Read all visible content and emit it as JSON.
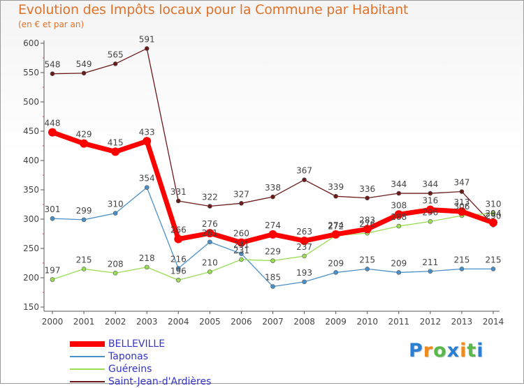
{
  "chart_data": {
    "type": "line",
    "title": "Evolution des Impôts locaux pour la Commune par Habitant",
    "subtitle": "(en € et par an)",
    "x": [
      "2000",
      "2001",
      "2002",
      "2003",
      "2004",
      "2005",
      "2006",
      "2007",
      "2008",
      "2009",
      "2010",
      "2011",
      "2012",
      "2013",
      "2014"
    ],
    "ylim": [
      150,
      600
    ],
    "yticks": [
      150,
      200,
      250,
      300,
      350,
      400,
      450,
      500,
      550,
      600
    ],
    "grid": false,
    "legend_position": "bottom-left",
    "series": [
      {
        "name": "BELLEVILLE",
        "color": "#ff0000",
        "values": [
          448,
          429,
          415,
          433,
          266,
          276,
          260,
          274,
          263,
          274,
          283,
          308,
          316,
          313,
          294
        ]
      },
      {
        "name": "Taponas",
        "color": "#4a90c8",
        "values": [
          301,
          299,
          310,
          354,
          216,
          261,
          241,
          185,
          193,
          209,
          215,
          209,
          211,
          215,
          215
        ]
      },
      {
        "name": "Guéreins",
        "color": "#99dd55",
        "values": [
          197,
          215,
          208,
          218,
          196,
          210,
          231,
          229,
          237,
          272,
          276,
          288,
          296,
          306,
          310
        ]
      },
      {
        "name": "Saint-Jean-d'Ardières",
        "color": "#6b1a1a",
        "values": [
          548,
          549,
          565,
          591,
          331,
          322,
          327,
          338,
          367,
          339,
          336,
          344,
          344,
          347,
          290
        ]
      }
    ]
  },
  "logo": {
    "letters": [
      "P",
      "r",
      "o",
      "x",
      "i",
      "t",
      "i"
    ],
    "colors": [
      "#2a7fd4",
      "#f08a1a",
      "#58b848",
      "#2a7fd4",
      "#f08a1a",
      "#58b848",
      "#2a7fd4"
    ]
  }
}
